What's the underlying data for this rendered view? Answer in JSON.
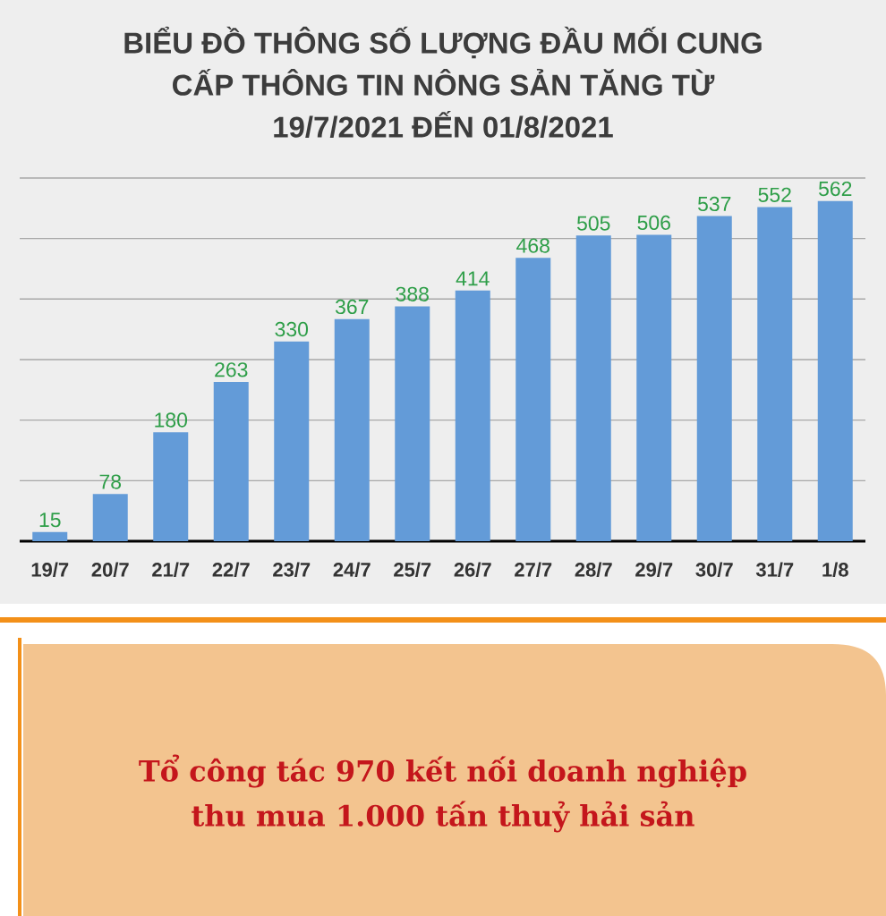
{
  "chart_data": {
    "type": "bar",
    "title": "BIỂU ĐỒ THÔNG SỐ LƯỢNG ĐẦU MỐI CUNG CẤP THÔNG TIN NÔNG SẢN TĂNG TỪ 19/7/2021 ĐẾN 01/8/2021",
    "categories": [
      "19/7",
      "20/7",
      "21/7",
      "22/7",
      "23/7",
      "24/7",
      "25/7",
      "26/7",
      "27/7",
      "28/7",
      "29/7",
      "30/7",
      "31/7",
      "1/8"
    ],
    "values": [
      15,
      78,
      180,
      263,
      330,
      367,
      388,
      414,
      468,
      505,
      506,
      537,
      552,
      562
    ],
    "color": "#639bd8",
    "data_labels": true,
    "ylim": [
      0,
      600
    ],
    "yticks": [
      {
        "value": 100,
        "label": null
      },
      {
        "value": 200,
        "label": null
      },
      {
        "value": 300,
        "label": null
      },
      {
        "value": 400,
        "label": null
      },
      {
        "value": 500,
        "label": null
      },
      {
        "value": 600,
        "label": null
      }
    ],
    "grid": "y",
    "tick_labels": "x",
    "annotations": [
      "Tổ công tác 970 kết nối doanh nghiệp thu mua 1.000 tấn thuỷ hải sản"
    ]
  }
}
